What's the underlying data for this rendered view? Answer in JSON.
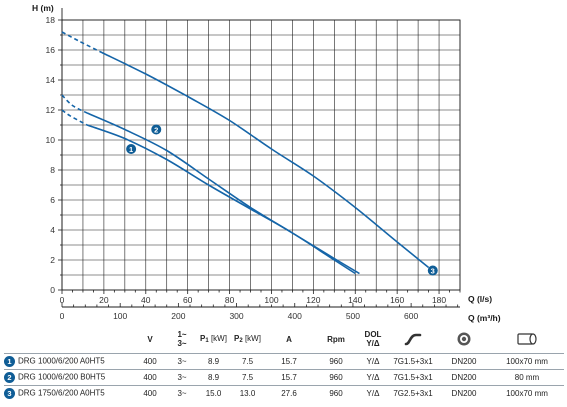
{
  "chart_data": {
    "type": "line",
    "ylabel": "H (m)",
    "xlabel": "Q (l/s)",
    "x2label": "Q (m³/h)",
    "xlim": [
      0,
      190
    ],
    "ylim": [
      0,
      18
    ],
    "x_ticks": [
      0,
      20,
      40,
      60,
      80,
      100,
      120,
      140,
      160,
      180
    ],
    "y_ticks": [
      0,
      2,
      4,
      6,
      8,
      10,
      12,
      14,
      16,
      18
    ],
    "x2_ticks": [
      0,
      100,
      200,
      300,
      400,
      500,
      600
    ],
    "grid": true,
    "colors": {
      "curve": "#1565a8",
      "badge": "#0f5d96"
    },
    "series": [
      {
        "name": "1",
        "label_at": [
          33,
          9.4
        ],
        "dashed": [
          [
            0,
            12.0
          ],
          [
            4,
            11.6
          ],
          [
            12,
            11.0
          ]
        ],
        "solid": [
          [
            12,
            11.0
          ],
          [
            30,
            10.1
          ],
          [
            50,
            8.7
          ],
          [
            70,
            7.0
          ],
          [
            90,
            5.4
          ],
          [
            110,
            3.8
          ],
          [
            130,
            2.0
          ],
          [
            140,
            1.1
          ]
        ]
      },
      {
        "name": "2",
        "label_at": [
          45,
          10.7
        ],
        "dashed": [
          [
            0,
            13.0
          ],
          [
            5,
            12.3
          ],
          [
            12,
            11.8
          ]
        ],
        "solid": [
          [
            12,
            11.8
          ],
          [
            30,
            10.7
          ],
          [
            50,
            9.3
          ],
          [
            70,
            7.4
          ],
          [
            90,
            5.5
          ],
          [
            110,
            3.8
          ],
          [
            130,
            2.1
          ],
          [
            142,
            1.1
          ]
        ]
      },
      {
        "name": "3",
        "label_at": [
          177,
          1.3
        ],
        "dashed": [
          [
            0,
            17.2
          ],
          [
            8,
            16.6
          ],
          [
            18,
            15.9
          ]
        ],
        "solid": [
          [
            18,
            15.9
          ],
          [
            40,
            14.4
          ],
          [
            60,
            12.9
          ],
          [
            80,
            11.3
          ],
          [
            100,
            9.4
          ],
          [
            120,
            7.6
          ],
          [
            140,
            5.5
          ],
          [
            160,
            3.2
          ],
          [
            175,
            1.5
          ]
        ]
      }
    ]
  },
  "table": {
    "headers": {
      "v": "V",
      "phase_1": "1~",
      "phase_3": "3~",
      "p1": "P",
      "p1_sub": "1",
      "p1_unit": "[kW]",
      "p2": "P",
      "p2_sub": "2",
      "p2_unit": "[kW]",
      "a": "A",
      "rpm": "Rpm",
      "dol": "DOL",
      "ydelta": "Y/Δ"
    },
    "icons": [
      "cable-icon",
      "flange-icon",
      "outlet-icon"
    ],
    "rows": [
      {
        "num": "1",
        "model": "DRG 1000/6/200 A0HT5",
        "v": "400",
        "phase": "3~",
        "p1": "8.9",
        "p2": "7.5",
        "a": "15.7",
        "rpm": "960",
        "dol": "Y/Δ",
        "cable": "7G1.5+3x1",
        "flange": "DN200",
        "outlet": "100x70 mm"
      },
      {
        "num": "2",
        "model": "DRG 1000/6/200 B0HT5",
        "v": "400",
        "phase": "3~",
        "p1": "8.9",
        "p2": "7.5",
        "a": "15.7",
        "rpm": "960",
        "dol": "Y/Δ",
        "cable": "7G1.5+3x1",
        "flange": "DN200",
        "outlet": "80 mm"
      },
      {
        "num": "3",
        "model": "DRG 1750/6/200 A0HT5",
        "v": "400",
        "phase": "3~",
        "p1": "15.0",
        "p2": "13.0",
        "a": "27.6",
        "rpm": "960",
        "dol": "Y/Δ",
        "cable": "7G2.5+3x1",
        "flange": "DN200",
        "outlet": "100x70 mm"
      }
    ]
  }
}
